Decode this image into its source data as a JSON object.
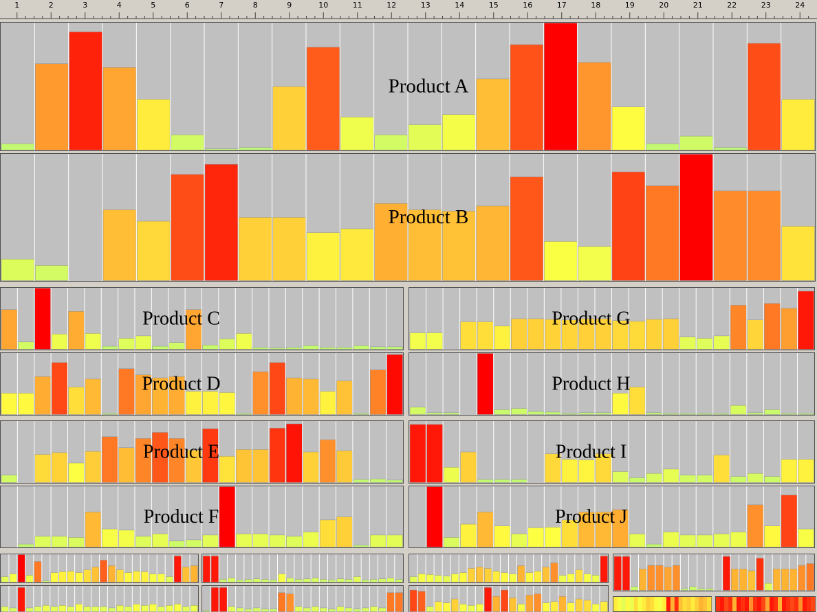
{
  "ruler": {
    "hours": [
      1,
      2,
      3,
      4,
      5,
      6,
      7,
      8,
      9,
      10,
      11,
      12,
      13,
      14,
      15,
      16,
      17,
      18,
      19,
      20,
      21,
      22,
      23,
      24
    ]
  },
  "color_scale": [
    "#b8f878",
    "#ffff40",
    "#ffa030",
    "#ff0000"
  ],
  "ylim": [
    0,
    100
  ],
  "panels": [
    {
      "name": "Product A",
      "type": "bar",
      "values": [
        5,
        68,
        93,
        65,
        40,
        12,
        1,
        2,
        50,
        81,
        26,
        12,
        20,
        28,
        56,
        83,
        100,
        69,
        34,
        5,
        11,
        2,
        84,
        40
      ]
    },
    {
      "name": "Product B",
      "type": "bar",
      "values": [
        17,
        12,
        0,
        56,
        47,
        84,
        92,
        50,
        50,
        38,
        41,
        61,
        56,
        55,
        59,
        82,
        31,
        27,
        86,
        75,
        100,
        71,
        71,
        43
      ]
    },
    {
      "name": "Product C",
      "type": "bar",
      "values": [
        65,
        12,
        100,
        25,
        62,
        26,
        5,
        18,
        22,
        5,
        11,
        65,
        7,
        17,
        26,
        3,
        2,
        3,
        6,
        3,
        3,
        6,
        4,
        4
      ]
    },
    {
      "name": "Product G",
      "type": "bar",
      "values": [
        27,
        27,
        0,
        45,
        45,
        38,
        50,
        50,
        49,
        48,
        50,
        50,
        47,
        46,
        49,
        50,
        20,
        18,
        22,
        72,
        48,
        75,
        67,
        95
      ]
    },
    {
      "name": "Product D",
      "type": "bar",
      "values": [
        35,
        35,
        62,
        85,
        45,
        58,
        2,
        75,
        65,
        60,
        62,
        38,
        38,
        36,
        2,
        70,
        85,
        60,
        58,
        38,
        55,
        2,
        73,
        98
      ]
    },
    {
      "name": "Product H",
      "type": "bar",
      "values": [
        12,
        3,
        3,
        0,
        100,
        8,
        10,
        5,
        4,
        2,
        3,
        3,
        35,
        45,
        3,
        2,
        2,
        2,
        2,
        15,
        3,
        8,
        2,
        2
      ]
    },
    {
      "name": "Product E",
      "type": "bar",
      "values": [
        12,
        0,
        46,
        49,
        32,
        51,
        75,
        57,
        72,
        82,
        72,
        53,
        88,
        43,
        54,
        54,
        89,
        96,
        50,
        70,
        52,
        5,
        6,
        4
      ]
    },
    {
      "name": "Product I",
      "type": "bar",
      "values": [
        95,
        95,
        25,
        50,
        5,
        5,
        5,
        0,
        47,
        38,
        37,
        47,
        18,
        8,
        15,
        22,
        12,
        12,
        45,
        10,
        15,
        10,
        38,
        38
      ]
    },
    {
      "name": "Product F",
      "type": "bar",
      "values": [
        0,
        5,
        18,
        18,
        16,
        58,
        30,
        28,
        18,
        22,
        10,
        12,
        20,
        100,
        22,
        22,
        20,
        18,
        25,
        45,
        50,
        3,
        20,
        20
      ]
    },
    {
      "name": "Product J",
      "type": "bar",
      "values": [
        0,
        100,
        16,
        38,
        58,
        35,
        22,
        32,
        33,
        45,
        58,
        58,
        62,
        22,
        5,
        25,
        20,
        20,
        22,
        25,
        70,
        35,
        86,
        30
      ]
    },
    {
      "type": "bar",
      "values": [
        20,
        30,
        100,
        25,
        75,
        5,
        35,
        38,
        40,
        35,
        45,
        55,
        80,
        60,
        45,
        35,
        40,
        38,
        30,
        30,
        20,
        95,
        55,
        60
      ]
    },
    {
      "type": "bar",
      "values": [
        95,
        95,
        10,
        15,
        8,
        10,
        12,
        10,
        8,
        30,
        15,
        10,
        12,
        15,
        10,
        8,
        12,
        10,
        20,
        8,
        10,
        12,
        15,
        10
      ]
    },
    {
      "type": "bar",
      "values": [
        20,
        30,
        28,
        25,
        22,
        30,
        35,
        50,
        55,
        50,
        40,
        35,
        30,
        60,
        35,
        40,
        55,
        70,
        25,
        30,
        45,
        30,
        25,
        95
      ]
    },
    {
      "type": "bar",
      "values": [
        95,
        95,
        10,
        60,
        70,
        70,
        65,
        70,
        5,
        10,
        5,
        5,
        0,
        95,
        60,
        60,
        55,
        90,
        20,
        60,
        60,
        60,
        70,
        75
      ]
    },
    {
      "type": "bar",
      "values": [
        20,
        15,
        95,
        15,
        20,
        25,
        20,
        25,
        20,
        30,
        20,
        20,
        20,
        15,
        25,
        20,
        30,
        25,
        30,
        20,
        25,
        30,
        20,
        25
      ]
    },
    {
      "type": "bar",
      "values": [
        5,
        95,
        95,
        20,
        15,
        10,
        15,
        10,
        10,
        75,
        70,
        20,
        15,
        20,
        15,
        10,
        20,
        15,
        10,
        15,
        20,
        15,
        75,
        75
      ]
    },
    {
      "type": "bar",
      "values": [
        85,
        80,
        20,
        40,
        35,
        50,
        30,
        25,
        30,
        95,
        60,
        85,
        55,
        30,
        65,
        70,
        35,
        40,
        60,
        35,
        50,
        45,
        30,
        40
      ]
    },
    {
      "type": "heat",
      "values": [
        40,
        30,
        20,
        35,
        25,
        45,
        30,
        40,
        50,
        45,
        35,
        30,
        40,
        95,
        60,
        90,
        55,
        45,
        50,
        40,
        50,
        60,
        55,
        45
      ]
    },
    {
      "type": "heat",
      "values": [
        90,
        95,
        85,
        90,
        60,
        95,
        90,
        95,
        70,
        90,
        95,
        85,
        65,
        95,
        90,
        60,
        95,
        90,
        85,
        90,
        70,
        95,
        90,
        85
      ]
    }
  ]
}
